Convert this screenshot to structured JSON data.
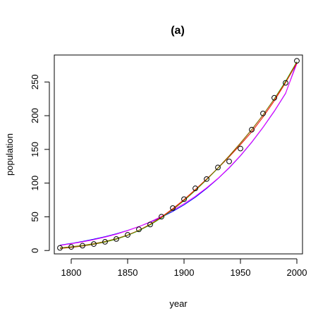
{
  "chart_data": {
    "type": "scatter",
    "title": "(a)",
    "xlabel": "year",
    "ylabel": "population",
    "xlim": [
      1785,
      2005
    ],
    "ylim": [
      -5,
      290
    ],
    "x_ticks": [
      1800,
      1850,
      1900,
      1950,
      2000
    ],
    "x_tick_labels": [
      "1800",
      "1850",
      "1900",
      "1950",
      "2000"
    ],
    "y_ticks": [
      0,
      50,
      100,
      150,
      200,
      250
    ],
    "y_tick_labels": [
      "0",
      "50",
      "100",
      "150",
      "200",
      "250"
    ],
    "grid": false,
    "points": {
      "x": [
        1790,
        1800,
        1810,
        1820,
        1830,
        1840,
        1850,
        1860,
        1870,
        1880,
        1890,
        1900,
        1910,
        1920,
        1930,
        1940,
        1950,
        1960,
        1970,
        1980,
        1990,
        2000
      ],
      "y": [
        3.9,
        5.3,
        7.2,
        9.6,
        12.9,
        17.1,
        23.2,
        31.4,
        38.6,
        50.2,
        63.0,
        76.2,
        92.2,
        106.0,
        123.2,
        132.2,
        151.3,
        179.3,
        203.3,
        226.5,
        248.7,
        281.4
      ]
    },
    "series": [
      {
        "color": "#0000ff",
        "x": [
          1790,
          1800,
          1810,
          1820,
          1830,
          1840,
          1850,
          1860,
          1870,
          1880,
          1890,
          1900,
          1910,
          1920,
          1930,
          1940,
          1950,
          1960,
          1970,
          1980,
          1990,
          2000
        ],
        "y": [
          8.0,
          10.5,
          13.5,
          16.8,
          20.5,
          24.8,
          29.8,
          35.5,
          42.0,
          49.5,
          58.0,
          67.8,
          79.0,
          92.0,
          106.5,
          122.5,
          140.5,
          160.5,
          182.5,
          206.5,
          233.0,
          279.0
        ]
      },
      {
        "color": "#ff00ff",
        "x": [
          1790,
          1800,
          1810,
          1820,
          1830,
          1840,
          1850,
          1860,
          1870,
          1880,
          1890,
          1900,
          1910,
          1920,
          1930,
          1940,
          1950,
          1960,
          1970,
          1980,
          1990,
          2000
        ],
        "y": [
          7.5,
          10.0,
          12.8,
          16.0,
          19.8,
          24.2,
          29.5,
          35.5,
          42.5,
          50.5,
          59.5,
          69.5,
          80.5,
          93.0,
          107.0,
          123.0,
          141.0,
          161.0,
          183.0,
          207.0,
          233.5,
          277.0
        ]
      },
      {
        "color": "#ff0000",
        "x": [
          1790,
          1800,
          1810,
          1820,
          1830,
          1840,
          1850,
          1860,
          1870,
          1880,
          1890,
          1900,
          1910,
          1920,
          1930,
          1940,
          1950,
          1960,
          1970,
          1980,
          1990,
          2000
        ],
        "y": [
          3.0,
          4.6,
          6.6,
          9.2,
          12.5,
          16.8,
          22.6,
          30.0,
          39.0,
          49.8,
          62.0,
          75.5,
          90.5,
          106.0,
          122.0,
          139.0,
          157.0,
          176.0,
          198.0,
          222.0,
          249.0,
          278.0
        ]
      },
      {
        "color": "#00cc00",
        "x": [
          1790,
          1800,
          1810,
          1820,
          1830,
          1840,
          1850,
          1860,
          1870,
          1880,
          1890,
          1900,
          1910,
          1920,
          1930,
          1940,
          1950,
          1960,
          1970,
          1980,
          1990,
          2000
        ],
        "y": [
          3.5,
          5.0,
          7.0,
          9.6,
          12.8,
          17.0,
          22.5,
          29.5,
          38.0,
          48.5,
          60.5,
          74.0,
          89.0,
          105.0,
          122.0,
          140.0,
          159.0,
          179.0,
          201.0,
          225.0,
          251.0,
          280.0
        ]
      },
      {
        "color": "#a05a00",
        "x": [
          1790,
          1800,
          1810,
          1820,
          1830,
          1840,
          1850,
          1860,
          1870,
          1880,
          1890,
          1900,
          1910,
          1920,
          1930,
          1940,
          1950,
          1960,
          1970,
          1980,
          1990,
          2000
        ],
        "y": [
          4.0,
          5.6,
          7.6,
          10.2,
          13.4,
          17.6,
          23.0,
          30.0,
          38.6,
          49.0,
          61.0,
          74.5,
          89.5,
          105.5,
          122.5,
          140.5,
          159.5,
          179.5,
          201.0,
          224.5,
          250.0,
          279.5
        ]
      }
    ]
  }
}
